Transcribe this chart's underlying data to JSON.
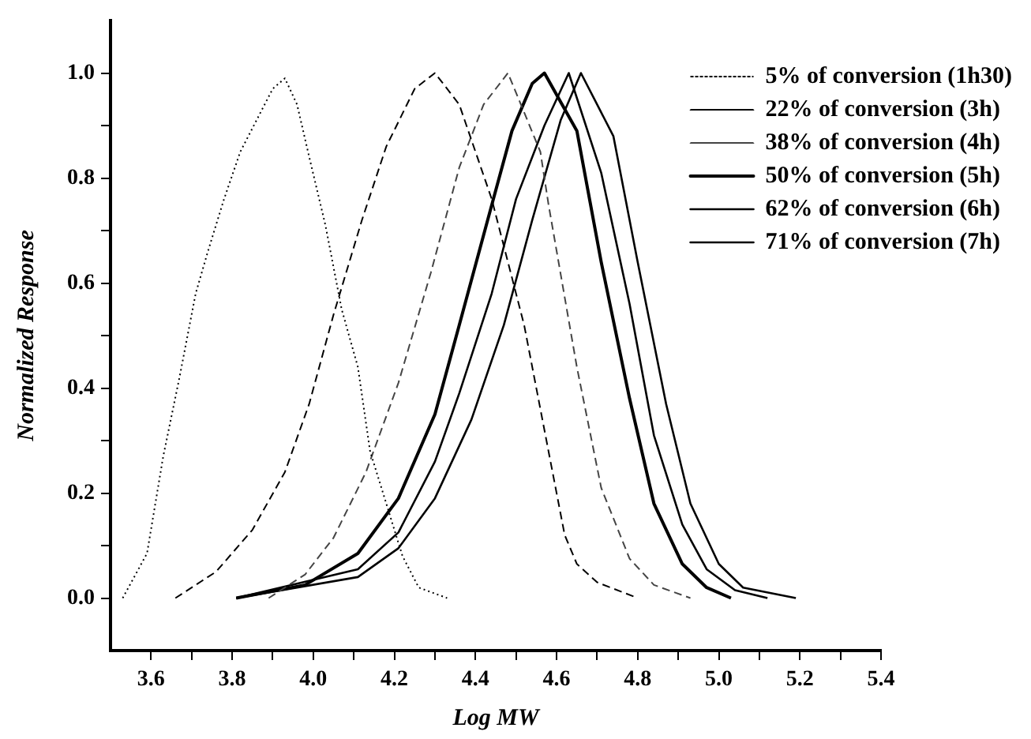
{
  "chart_data": {
    "type": "line",
    "xlabel": "Log MW",
    "ylabel": "Normalized Response",
    "xlim": [
      3.5,
      5.4
    ],
    "xticks": [
      3.6,
      {
        "value": 3.7,
        "label": null
      },
      3.8,
      {
        "value": 3.9,
        "label": null
      },
      {
        "value": 4.0,
        "label": "4.0"
      },
      {
        "value": 4.1,
        "label": null
      },
      4.2,
      {
        "value": 4.3,
        "label": null
      },
      4.4,
      {
        "value": 4.5,
        "label": null
      },
      4.6,
      {
        "value": 4.7,
        "label": null
      },
      4.8,
      {
        "value": 4.9,
        "label": null
      },
      {
        "value": 5.0,
        "label": "5.0"
      },
      {
        "value": 5.1,
        "label": null
      },
      5.2,
      {
        "value": 5.3,
        "label": null
      },
      5.4
    ],
    "ylim": [
      -0.1,
      1.1
    ],
    "yticks": [
      {
        "value": 0,
        "label": "0.0"
      },
      {
        "value": 0.1,
        "label": null
      },
      0.2,
      {
        "value": 0.3,
        "label": null
      },
      0.4,
      {
        "value": 0.5,
        "label": null
      },
      0.6,
      {
        "value": 0.7,
        "label": null
      },
      0.8,
      {
        "value": 0.9,
        "label": null
      },
      {
        "value": 1.0,
        "label": "1.0"
      }
    ],
    "grid": false,
    "legend": "top right",
    "marker": "none",
    "series": [
      {
        "name": "5% of conversion (1h30)",
        "color": "#000000",
        "line_style": "dotted",
        "x": [
          3.53,
          3.59,
          3.63,
          3.67,
          3.71,
          3.74,
          3.78,
          3.82,
          3.86,
          3.9,
          3.93,
          3.96,
          3.99,
          4.03,
          4.07,
          4.11,
          4.14,
          4.18,
          4.22,
          4.26,
          4.33
        ],
        "values": [
          0,
          0.085,
          0.27,
          0.42,
          0.58,
          0.66,
          0.76,
          0.85,
          0.91,
          0.97,
          0.99,
          0.94,
          0.84,
          0.71,
          0.55,
          0.44,
          0.28,
          0.18,
          0.08,
          0.02,
          0
        ]
      },
      {
        "name": "22% of conversion (3h)",
        "color": "#000000",
        "line_style": "dashed",
        "x": [
          3.66,
          3.76,
          3.85,
          3.93,
          3.99,
          4.05,
          4.12,
          4.18,
          4.25,
          4.3,
          4.36,
          4.44,
          4.52,
          4.58,
          4.62,
          4.65,
          4.7,
          4.8
        ],
        "values": [
          0,
          0.05,
          0.13,
          0.24,
          0.37,
          0.54,
          0.72,
          0.86,
          0.97,
          1.0,
          0.94,
          0.76,
          0.52,
          0.28,
          0.12,
          0.065,
          0.03,
          0
        ]
      },
      {
        "name": "38% of conversion (4h)",
        "color": "#444444",
        "line_style": "dashed",
        "x": [
          3.89,
          3.98,
          4.05,
          4.13,
          4.21,
          4.29,
          4.36,
          4.42,
          4.48,
          4.56,
          4.58,
          4.65,
          4.71,
          4.78,
          4.84,
          4.93
        ],
        "values": [
          0,
          0.045,
          0.115,
          0.24,
          0.41,
          0.62,
          0.82,
          0.94,
          1.0,
          0.85,
          0.75,
          0.44,
          0.21,
          0.075,
          0.025,
          0
        ]
      },
      {
        "name": "50% of conversion (5h)",
        "color": "#000000",
        "line_style": "solid",
        "x": [
          3.81,
          3.98,
          4.11,
          4.21,
          4.3,
          4.36,
          4.43,
          4.49,
          4.54,
          4.57,
          4.65,
          4.71,
          4.78,
          4.84,
          4.91,
          4.97,
          5.03
        ],
        "values": [
          0,
          0.025,
          0.085,
          0.19,
          0.35,
          0.52,
          0.72,
          0.89,
          0.98,
          1.0,
          0.89,
          0.64,
          0.38,
          0.18,
          0.065,
          0.02,
          0
        ]
      },
      {
        "name": "62% of conversion (6h)",
        "color": "#000000",
        "line_style": "solid",
        "x": [
          3.81,
          4.11,
          4.21,
          4.3,
          4.36,
          4.44,
          4.5,
          4.57,
          4.63,
          4.71,
          4.78,
          4.84,
          4.91,
          4.97,
          5.04,
          5.12
        ],
        "values": [
          0,
          0.055,
          0.125,
          0.26,
          0.39,
          0.58,
          0.76,
          0.9,
          1.0,
          0.81,
          0.56,
          0.31,
          0.14,
          0.055,
          0.015,
          0
        ]
      },
      {
        "name": "71% of conversion (7h)",
        "color": "#000000",
        "line_style": "solid",
        "x": [
          3.81,
          4.11,
          4.21,
          4.3,
          4.39,
          4.47,
          4.54,
          4.61,
          4.66,
          4.74,
          4.8,
          4.87,
          4.93,
          5.0,
          5.06,
          5.19
        ],
        "values": [
          0,
          0.04,
          0.095,
          0.19,
          0.34,
          0.52,
          0.72,
          0.91,
          1.0,
          0.88,
          0.64,
          0.37,
          0.18,
          0.065,
          0.02,
          0
        ]
      }
    ]
  }
}
